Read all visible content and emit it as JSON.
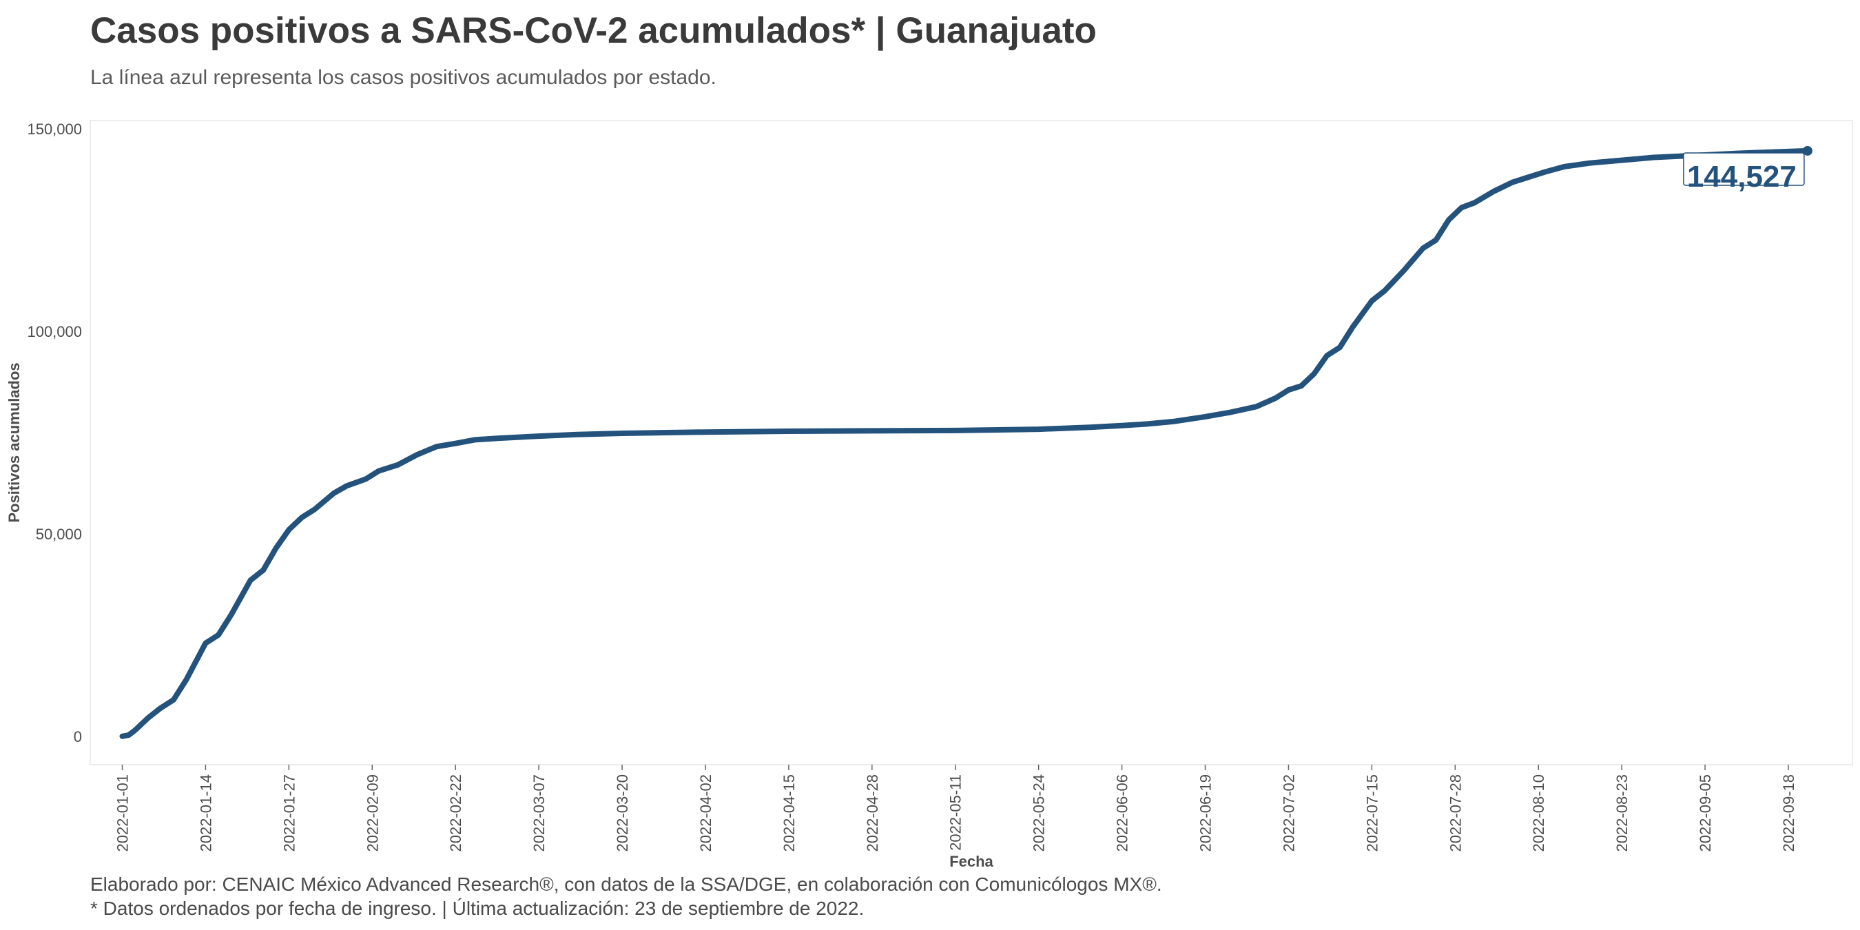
{
  "header": {
    "title": "Casos positivos a SARS-CoV-2 acumulados* | Guanajuato",
    "subtitle": "La línea azul representa los casos positivos acumulados por estado."
  },
  "footer": {
    "line1": "Elaborado por: CENAIC México Advanced Research®, con datos de la SSA/DGE, en colaboración con Comunicólogos MX®.",
    "line2": "* Datos ordenados por fecha de ingreso. | Última actualización: 23 de septiembre de 2022."
  },
  "colors": {
    "line": "#23527c",
    "frame": "#e6e6e6",
    "text": "#3c3c3c"
  },
  "chart_data": {
    "type": "line",
    "title": "Casos positivos a SARS-CoV-2 acumulados* | Guanajuato",
    "subtitle": "La línea azul representa los casos positivos acumulados por estado.",
    "xlabel": "Fecha",
    "ylabel": "Positivos acumulados",
    "ylim": [
      -7000,
      152000
    ],
    "xlim": [
      "2021-12-27",
      "2022-09-28"
    ],
    "x_ticks": [
      "2022-01-01",
      "2022-01-14",
      "2022-01-27",
      "2022-02-09",
      "2022-02-22",
      "2022-03-07",
      "2022-03-20",
      "2022-04-02",
      "2022-04-15",
      "2022-04-28",
      "2022-05-11",
      "2022-05-24",
      "2022-06-06",
      "2022-06-19",
      "2022-07-02",
      "2022-07-15",
      "2022-07-28",
      "2022-08-10",
      "2022-08-23",
      "2022-09-05",
      "2022-09-18"
    ],
    "y_ticks": [
      0,
      50000,
      100000,
      150000
    ],
    "y_tick_labels": [
      "0",
      "50,000",
      "100,000",
      "150,000"
    ],
    "grid": false,
    "end_label": "144,527",
    "series": [
      {
        "points": [
          [
            "2022-01-01",
            0
          ],
          [
            "2022-01-02",
            300
          ],
          [
            "2022-01-03",
            1500
          ],
          [
            "2022-01-05",
            4500
          ],
          [
            "2022-01-07",
            7000
          ],
          [
            "2022-01-09",
            9000
          ],
          [
            "2022-01-11",
            14000
          ],
          [
            "2022-01-14",
            23000
          ],
          [
            "2022-01-16",
            25000
          ],
          [
            "2022-01-18",
            30000
          ],
          [
            "2022-01-21",
            38500
          ],
          [
            "2022-01-23",
            41000
          ],
          [
            "2022-01-25",
            46500
          ],
          [
            "2022-01-27",
            51000
          ],
          [
            "2022-01-29",
            54000
          ],
          [
            "2022-01-31",
            56000
          ],
          [
            "2022-02-03",
            60000
          ],
          [
            "2022-02-05",
            61800
          ],
          [
            "2022-02-08",
            63500
          ],
          [
            "2022-02-10",
            65500
          ],
          [
            "2022-02-13",
            67000
          ],
          [
            "2022-02-16",
            69500
          ],
          [
            "2022-02-19",
            71500
          ],
          [
            "2022-02-22",
            72300
          ],
          [
            "2022-02-25",
            73200
          ],
          [
            "2022-03-01",
            73600
          ],
          [
            "2022-03-07",
            74100
          ],
          [
            "2022-03-13",
            74500
          ],
          [
            "2022-03-20",
            74800
          ],
          [
            "2022-04-02",
            75100
          ],
          [
            "2022-04-15",
            75300
          ],
          [
            "2022-04-28",
            75400
          ],
          [
            "2022-05-11",
            75500
          ],
          [
            "2022-05-24",
            75800
          ],
          [
            "2022-06-01",
            76300
          ],
          [
            "2022-06-06",
            76700
          ],
          [
            "2022-06-10",
            77100
          ],
          [
            "2022-06-14",
            77700
          ],
          [
            "2022-06-19",
            78900
          ],
          [
            "2022-06-23",
            80000
          ],
          [
            "2022-06-27",
            81400
          ],
          [
            "2022-06-30",
            83500
          ],
          [
            "2022-07-02",
            85500
          ],
          [
            "2022-07-04",
            86500
          ],
          [
            "2022-07-06",
            89500
          ],
          [
            "2022-07-08",
            94000
          ],
          [
            "2022-07-10",
            96000
          ],
          [
            "2022-07-12",
            101000
          ],
          [
            "2022-07-15",
            107500
          ],
          [
            "2022-07-17",
            110000
          ],
          [
            "2022-07-20",
            115000
          ],
          [
            "2022-07-23",
            120500
          ],
          [
            "2022-07-25",
            122500
          ],
          [
            "2022-07-27",
            127500
          ],
          [
            "2022-07-29",
            130500
          ],
          [
            "2022-07-31",
            131700
          ],
          [
            "2022-08-03",
            134500
          ],
          [
            "2022-08-06",
            136800
          ],
          [
            "2022-08-08",
            137800
          ],
          [
            "2022-08-11",
            139300
          ],
          [
            "2022-08-14",
            140600
          ],
          [
            "2022-08-18",
            141500
          ],
          [
            "2022-08-23",
            142200
          ],
          [
            "2022-08-28",
            142900
          ],
          [
            "2022-09-05",
            143500
          ],
          [
            "2022-09-10",
            143900
          ],
          [
            "2022-09-15",
            144200
          ],
          [
            "2022-09-21",
            144527
          ]
        ]
      }
    ]
  }
}
